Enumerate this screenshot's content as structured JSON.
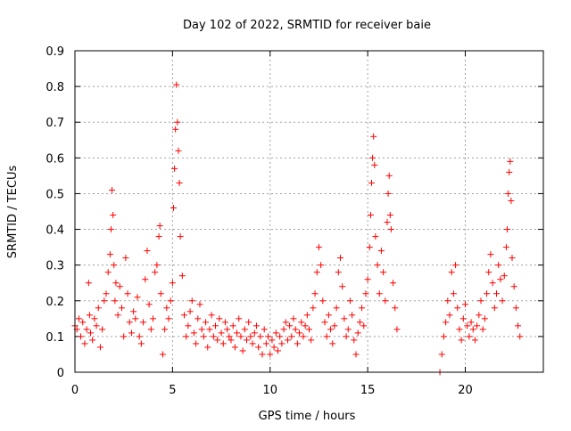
{
  "chart_data": {
    "type": "scatter",
    "title": "Day 102 of 2022, SRMTID for receiver baie",
    "xlabel": "GPS time / hours",
    "ylabel": "SRMTID / TECUs",
    "xlim": [
      0,
      24
    ],
    "ylim": [
      0,
      0.9
    ],
    "x_ticks": [
      0,
      5,
      10,
      15,
      20
    ],
    "x_tick_labels": [
      "0",
      "5",
      "10",
      "15",
      "20"
    ],
    "y_ticks": [
      0,
      0.1,
      0.2,
      0.3,
      0.4,
      0.5,
      0.6,
      0.7,
      0.8,
      0.9
    ],
    "y_tick_labels": [
      "0",
      "0.1",
      "0.2",
      "0.3",
      "0.4",
      "0.5",
      "0.6",
      "0.7",
      "0.8",
      "0.9"
    ],
    "grid": true,
    "marker": "+",
    "color": "#ff0000",
    "series": [
      {
        "name": "SRMTID",
        "points": [
          [
            0.0,
            0.13
          ],
          [
            0.1,
            0.12
          ],
          [
            0.2,
            0.15
          ],
          [
            0.3,
            0.1
          ],
          [
            0.4,
            0.14
          ],
          [
            0.5,
            0.08
          ],
          [
            0.6,
            0.12
          ],
          [
            0.7,
            0.25
          ],
          [
            0.75,
            0.16
          ],
          [
            0.8,
            0.11
          ],
          [
            0.9,
            0.09
          ],
          [
            1.0,
            0.15
          ],
          [
            1.1,
            0.13
          ],
          [
            1.2,
            0.18
          ],
          [
            1.3,
            0.07
          ],
          [
            1.4,
            0.12
          ],
          [
            1.5,
            0.2
          ],
          [
            1.6,
            0.22
          ],
          [
            1.7,
            0.28
          ],
          [
            1.8,
            0.33
          ],
          [
            1.85,
            0.4
          ],
          [
            1.9,
            0.51
          ],
          [
            1.95,
            0.44
          ],
          [
            2.0,
            0.3
          ],
          [
            2.05,
            0.2
          ],
          [
            2.1,
            0.25
          ],
          [
            2.2,
            0.16
          ],
          [
            2.3,
            0.24
          ],
          [
            2.4,
            0.18
          ],
          [
            2.5,
            0.1
          ],
          [
            2.6,
            0.32
          ],
          [
            2.7,
            0.22
          ],
          [
            2.8,
            0.14
          ],
          [
            2.9,
            0.11
          ],
          [
            3.0,
            0.17
          ],
          [
            3.1,
            0.15
          ],
          [
            3.2,
            0.21
          ],
          [
            3.3,
            0.1
          ],
          [
            3.4,
            0.08
          ],
          [
            3.5,
            0.14
          ],
          [
            3.6,
            0.26
          ],
          [
            3.7,
            0.34
          ],
          [
            3.8,
            0.19
          ],
          [
            3.9,
            0.12
          ],
          [
            4.0,
            0.15
          ],
          [
            4.1,
            0.28
          ],
          [
            4.2,
            0.3
          ],
          [
            4.3,
            0.38
          ],
          [
            4.35,
            0.41
          ],
          [
            4.4,
            0.22
          ],
          [
            4.5,
            0.05
          ],
          [
            4.6,
            0.12
          ],
          [
            4.7,
            0.18
          ],
          [
            4.8,
            0.15
          ],
          [
            4.9,
            0.2
          ],
          [
            5.0,
            0.25
          ],
          [
            5.05,
            0.46
          ],
          [
            5.1,
            0.57
          ],
          [
            5.15,
            0.68
          ],
          [
            5.2,
            0.805
          ],
          [
            5.25,
            0.7
          ],
          [
            5.3,
            0.62
          ],
          [
            5.35,
            0.53
          ],
          [
            5.4,
            0.38
          ],
          [
            5.5,
            0.27
          ],
          [
            5.6,
            0.16
          ],
          [
            5.7,
            0.1
          ],
          [
            5.8,
            0.13
          ],
          [
            5.9,
            0.17
          ],
          [
            6.0,
            0.2
          ],
          [
            6.1,
            0.11
          ],
          [
            6.2,
            0.08
          ],
          [
            6.3,
            0.15
          ],
          [
            6.4,
            0.19
          ],
          [
            6.5,
            0.12
          ],
          [
            6.6,
            0.1
          ],
          [
            6.7,
            0.14
          ],
          [
            6.8,
            0.07
          ],
          [
            6.9,
            0.12
          ],
          [
            7.0,
            0.16
          ],
          [
            7.1,
            0.1
          ],
          [
            7.2,
            0.13
          ],
          [
            7.3,
            0.09
          ],
          [
            7.4,
            0.15
          ],
          [
            7.5,
            0.11
          ],
          [
            7.6,
            0.08
          ],
          [
            7.7,
            0.14
          ],
          [
            7.8,
            0.12
          ],
          [
            7.9,
            0.1
          ],
          [
            8.0,
            0.09
          ],
          [
            8.1,
            0.13
          ],
          [
            8.2,
            0.07
          ],
          [
            8.3,
            0.11
          ],
          [
            8.4,
            0.15
          ],
          [
            8.5,
            0.1
          ],
          [
            8.6,
            0.06
          ],
          [
            8.7,
            0.12
          ],
          [
            8.8,
            0.09
          ],
          [
            8.9,
            0.14
          ],
          [
            9.0,
            0.1
          ],
          [
            9.1,
            0.08
          ],
          [
            9.2,
            0.11
          ],
          [
            9.3,
            0.13
          ],
          [
            9.4,
            0.07
          ],
          [
            9.5,
            0.1
          ],
          [
            9.6,
            0.05
          ],
          [
            9.7,
            0.12
          ],
          [
            9.8,
            0.08
          ],
          [
            9.9,
            0.1
          ],
          [
            10.0,
            0.05
          ],
          [
            10.1,
            0.09
          ],
          [
            10.2,
            0.07
          ],
          [
            10.3,
            0.11
          ],
          [
            10.4,
            0.06
          ],
          [
            10.5,
            0.1
          ],
          [
            10.6,
            0.08
          ],
          [
            10.7,
            0.12
          ],
          [
            10.8,
            0.14
          ],
          [
            10.9,
            0.09
          ],
          [
            11.0,
            0.13
          ],
          [
            11.1,
            0.1
          ],
          [
            11.2,
            0.15
          ],
          [
            11.3,
            0.12
          ],
          [
            11.4,
            0.08
          ],
          [
            11.5,
            0.11
          ],
          [
            11.6,
            0.14
          ],
          [
            11.7,
            0.1
          ],
          [
            11.8,
            0.13
          ],
          [
            11.9,
            0.16
          ],
          [
            12.0,
            0.12
          ],
          [
            12.1,
            0.09
          ],
          [
            12.2,
            0.18
          ],
          [
            12.3,
            0.22
          ],
          [
            12.4,
            0.28
          ],
          [
            12.5,
            0.35
          ],
          [
            12.6,
            0.3
          ],
          [
            12.7,
            0.2
          ],
          [
            12.8,
            0.14
          ],
          [
            12.9,
            0.1
          ],
          [
            13.0,
            0.16
          ],
          [
            13.1,
            0.12
          ],
          [
            13.2,
            0.08
          ],
          [
            13.3,
            0.13
          ],
          [
            13.4,
            0.18
          ],
          [
            13.5,
            0.28
          ],
          [
            13.6,
            0.32
          ],
          [
            13.7,
            0.24
          ],
          [
            13.8,
            0.15
          ],
          [
            13.9,
            0.1
          ],
          [
            14.0,
            0.12
          ],
          [
            14.1,
            0.2
          ],
          [
            14.2,
            0.16
          ],
          [
            14.3,
            0.09
          ],
          [
            14.4,
            0.05
          ],
          [
            14.5,
            0.11
          ],
          [
            14.6,
            0.14
          ],
          [
            14.7,
            0.18
          ],
          [
            14.8,
            0.13
          ],
          [
            14.9,
            0.22
          ],
          [
            15.0,
            0.26
          ],
          [
            15.1,
            0.35
          ],
          [
            15.15,
            0.44
          ],
          [
            15.2,
            0.53
          ],
          [
            15.25,
            0.6
          ],
          [
            15.3,
            0.66
          ],
          [
            15.35,
            0.58
          ],
          [
            15.4,
            0.38
          ],
          [
            15.5,
            0.3
          ],
          [
            15.6,
            0.22
          ],
          [
            15.7,
            0.34
          ],
          [
            15.8,
            0.28
          ],
          [
            15.9,
            0.2
          ],
          [
            16.0,
            0.42
          ],
          [
            16.05,
            0.5
          ],
          [
            16.1,
            0.55
          ],
          [
            16.15,
            0.44
          ],
          [
            16.2,
            0.4
          ],
          [
            16.3,
            0.25
          ],
          [
            16.4,
            0.18
          ],
          [
            16.5,
            0.12
          ],
          [
            18.7,
            0.0
          ],
          [
            18.8,
            0.05
          ],
          [
            18.9,
            0.1
          ],
          [
            19.0,
            0.14
          ],
          [
            19.1,
            0.2
          ],
          [
            19.2,
            0.16
          ],
          [
            19.3,
            0.28
          ],
          [
            19.4,
            0.22
          ],
          [
            19.5,
            0.3
          ],
          [
            19.6,
            0.18
          ],
          [
            19.7,
            0.12
          ],
          [
            19.8,
            0.09
          ],
          [
            19.9,
            0.15
          ],
          [
            20.0,
            0.19
          ],
          [
            20.1,
            0.13
          ],
          [
            20.2,
            0.1
          ],
          [
            20.3,
            0.14
          ],
          [
            20.4,
            0.12
          ],
          [
            20.5,
            0.09
          ],
          [
            20.6,
            0.13
          ],
          [
            20.7,
            0.16
          ],
          [
            20.8,
            0.2
          ],
          [
            20.9,
            0.12
          ],
          [
            21.0,
            0.15
          ],
          [
            21.1,
            0.22
          ],
          [
            21.2,
            0.28
          ],
          [
            21.3,
            0.33
          ],
          [
            21.4,
            0.25
          ],
          [
            21.5,
            0.18
          ],
          [
            21.6,
            0.22
          ],
          [
            21.7,
            0.3
          ],
          [
            21.8,
            0.26
          ],
          [
            21.9,
            0.2
          ],
          [
            22.0,
            0.27
          ],
          [
            22.1,
            0.35
          ],
          [
            22.15,
            0.4
          ],
          [
            22.2,
            0.5
          ],
          [
            22.25,
            0.56
          ],
          [
            22.3,
            0.59
          ],
          [
            22.35,
            0.48
          ],
          [
            22.4,
            0.32
          ],
          [
            22.5,
            0.24
          ],
          [
            22.6,
            0.18
          ],
          [
            22.7,
            0.13
          ],
          [
            22.8,
            0.1
          ]
        ]
      }
    ]
  }
}
